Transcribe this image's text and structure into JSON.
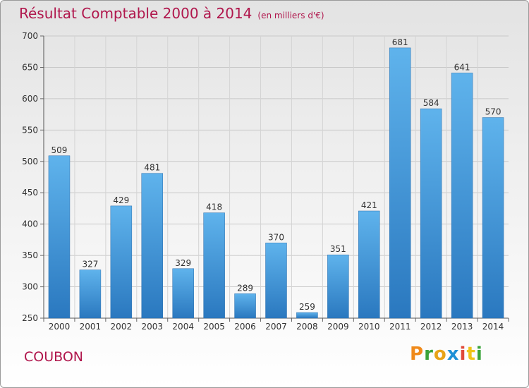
{
  "chart_data": {
    "type": "bar",
    "title": "Résultat Comptable 2000 à 2014",
    "unit": "(en milliers d'€)",
    "categories": [
      "2000",
      "2001",
      "2002",
      "2003",
      "2004",
      "2005",
      "2006",
      "2007",
      "2008",
      "2009",
      "2010",
      "2011",
      "2012",
      "2013",
      "2014"
    ],
    "values": [
      509,
      327,
      429,
      481,
      329,
      418,
      289,
      370,
      259,
      351,
      421,
      681,
      584,
      641,
      570
    ],
    "ylim": [
      250,
      700
    ],
    "yticks": [
      250,
      300,
      350,
      400,
      450,
      500,
      550,
      600,
      650,
      700
    ],
    "grid": true,
    "bar_color": "#3d8fd6"
  },
  "footer": {
    "city": "COUBON",
    "brand": {
      "letters": [
        "P",
        "r",
        "o",
        "x",
        "i",
        "t",
        "i"
      ],
      "colors": [
        "#f08a1a",
        "#3aa33a",
        "#e8a317",
        "#1e90d6",
        "#e04a3a",
        "#f0c419",
        "#3aa33a"
      ]
    }
  }
}
